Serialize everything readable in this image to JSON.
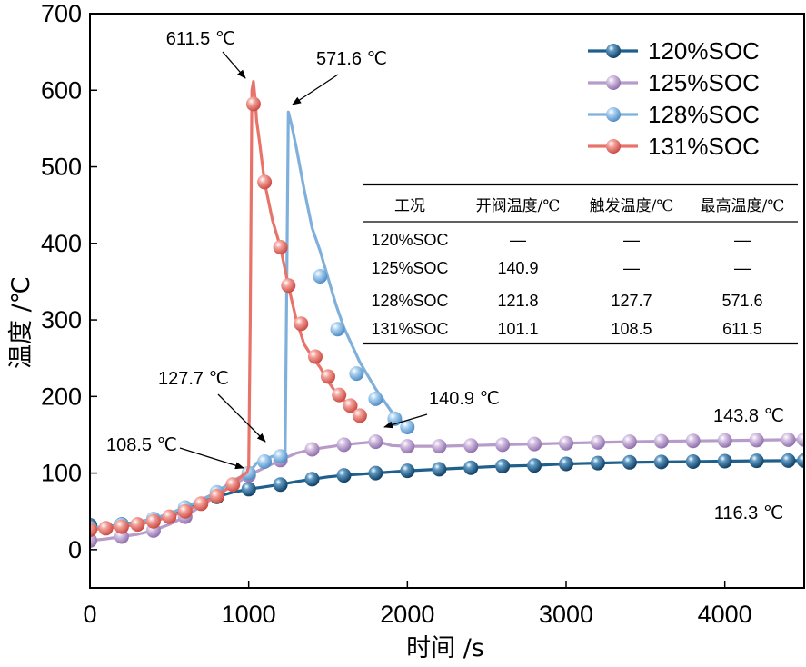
{
  "chart_data": {
    "type": "line",
    "xlabel": "时间 /s",
    "ylabel": "温度 /℃",
    "xlim": [
      0,
      4500
    ],
    "ylim": [
      -50,
      700
    ],
    "xticks": [
      "0",
      "1000",
      "2000",
      "3000",
      "4000"
    ],
    "yticks": [
      "0",
      "100",
      "200",
      "300",
      "400",
      "500",
      "600",
      "700"
    ],
    "legend_position": "top-right",
    "series": [
      {
        "name": "120%SOC",
        "color": "#1f5f8b",
        "x": [
          0,
          50,
          100,
          200,
          300,
          400,
          500,
          600,
          700,
          800,
          900,
          1000,
          1100,
          1200,
          1300,
          1400,
          1500,
          1600,
          1800,
          2000,
          2200,
          2400,
          2600,
          2800,
          3000,
          3200,
          3400,
          3600,
          3800,
          4000,
          4200,
          4400,
          4500
        ],
        "y": [
          32,
          29,
          30,
          33,
          36,
          40,
          46,
          54,
          62,
          69,
          75,
          79,
          82,
          85,
          89,
          92,
          95,
          97,
          100,
          103,
          105,
          107,
          109,
          110,
          112,
          113,
          114,
          114.5,
          115,
          115.5,
          116,
          116.3,
          116.3
        ],
        "marker_x": [
          0,
          200,
          400,
          600,
          800,
          1000,
          1200,
          1400,
          1600,
          1800,
          2000,
          2200,
          2400,
          2600,
          2800,
          3000,
          3200,
          3400,
          3600,
          3800,
          4000,
          4200,
          4400,
          4500
        ],
        "marker_y": [
          32,
          33,
          40,
          54,
          69,
          79,
          85,
          92,
          97,
          100,
          103,
          105,
          107,
          109,
          110,
          112,
          113,
          114,
          114.5,
          115,
          115.5,
          116,
          116.3,
          116.3
        ]
      },
      {
        "name": "125%SOC",
        "color": "#b79cc9",
        "x": [
          0,
          100,
          200,
          300,
          400,
          500,
          600,
          700,
          800,
          900,
          1000,
          1100,
          1200,
          1300,
          1400,
          1500,
          1600,
          1700,
          1800,
          1850,
          1900,
          2000,
          2200,
          2400,
          2600,
          2800,
          3000,
          3200,
          3400,
          3600,
          3800,
          4000,
          4200,
          4400,
          4500
        ],
        "y": [
          12,
          14,
          17,
          20,
          25,
          33,
          43,
          57,
          71,
          84,
          97,
          107,
          117,
          126,
          131,
          134,
          137,
          139,
          140.9,
          139,
          136,
          135,
          135,
          136,
          137,
          138,
          139,
          140,
          141,
          141.5,
          142,
          142.5,
          143,
          143.5,
          143.8
        ],
        "marker_x": [
          0,
          200,
          400,
          600,
          800,
          1000,
          1200,
          1400,
          1600,
          1800,
          2000,
          2200,
          2400,
          2600,
          2800,
          3000,
          3200,
          3400,
          3600,
          3800,
          4000,
          4200,
          4400,
          4500
        ],
        "marker_y": [
          12,
          17,
          25,
          43,
          71,
          97,
          117,
          131,
          137,
          140.9,
          135,
          135,
          136,
          137,
          138,
          139,
          140,
          141,
          141.5,
          142,
          142.5,
          143,
          143.5,
          143.8
        ]
      },
      {
        "name": "128%SOC",
        "color": "#7fb0dc",
        "x": [
          0,
          200,
          400,
          600,
          800,
          900,
          1000,
          1050,
          1100,
          1150,
          1200,
          1220,
          1230,
          1240,
          1250,
          1270,
          1300,
          1350,
          1400,
          1450,
          1500,
          1550,
          1600,
          1700,
          1800,
          1900,
          2000
        ],
        "y": [
          28,
          32,
          40,
          55,
          75,
          90,
          100,
          113,
          118,
          121.8,
          124,
          126,
          127.7,
          350,
          571.6,
          555,
          525,
          470,
          420,
          390,
          355,
          320,
          290,
          245,
          210,
          180,
          160
        ],
        "marker_x": [
          0,
          200,
          400,
          600,
          800,
          1000,
          1100,
          1200,
          1450,
          1560,
          1680,
          1800,
          1920,
          2000
        ],
        "marker_y": [
          28,
          32,
          40,
          55,
          75,
          100,
          115,
          121.8,
          357,
          288,
          230,
          197,
          171,
          160
        ]
      },
      {
        "name": "131%SOC",
        "color": "#e8736a",
        "x": [
          0,
          100,
          200,
          300,
          400,
          500,
          600,
          700,
          800,
          900,
          950,
          990,
          1000,
          1010,
          1020,
          1030,
          1040,
          1050,
          1070,
          1100,
          1150,
          1200,
          1250,
          1300,
          1350,
          1400,
          1450,
          1500,
          1550,
          1600,
          1650,
          1700
        ],
        "y": [
          26,
          28,
          30,
          33,
          37,
          43,
          50,
          60,
          70,
          85,
          95,
          101.1,
          108.5,
          300,
          600,
          611.5,
          590,
          560,
          530,
          480,
          430,
          395,
          345,
          300,
          268,
          252,
          238,
          220,
          205,
          195,
          185,
          175
        ],
        "marker_x": [
          0,
          100,
          200,
          300,
          400,
          500,
          600,
          700,
          800,
          900,
          1030,
          1100,
          1200,
          1250,
          1330,
          1420,
          1500,
          1570,
          1640,
          1700
        ],
        "marker_y": [
          26,
          28,
          30,
          33,
          37,
          43,
          50,
          60,
          70,
          85,
          582,
          480,
          395,
          345,
          295,
          252,
          226,
          202,
          188,
          175
        ]
      }
    ],
    "annotations": [
      {
        "text": "611.5 ℃",
        "x": 1030,
        "y": 611.5
      },
      {
        "text": "571.6 ℃",
        "x": 1250,
        "y": 571.6
      },
      {
        "text": "127.7 ℃",
        "x": 1230,
        "y": 127.7
      },
      {
        "text": "108.5 ℃",
        "x": 1000,
        "y": 108.5
      },
      {
        "text": "140.9 ℃",
        "x": 1800,
        "y": 140.9
      },
      {
        "text": "143.8 ℃",
        "x": 4500,
        "y": 143.8
      },
      {
        "text": "116.3 ℃",
        "x": 4500,
        "y": 116.3
      }
    ],
    "table": {
      "headers": [
        "工况",
        "开阀温度/℃",
        "触发温度/℃",
        "最高温度/℃"
      ],
      "rows": [
        [
          "120%SOC",
          "—",
          "—",
          "—"
        ],
        [
          "125%SOC",
          "140.9",
          "—",
          "—"
        ],
        [
          "128%SOC",
          "121.8",
          "127.7",
          "571.6"
        ],
        [
          "131%SOC",
          "101.1",
          "108.5",
          "611.5"
        ]
      ]
    }
  }
}
